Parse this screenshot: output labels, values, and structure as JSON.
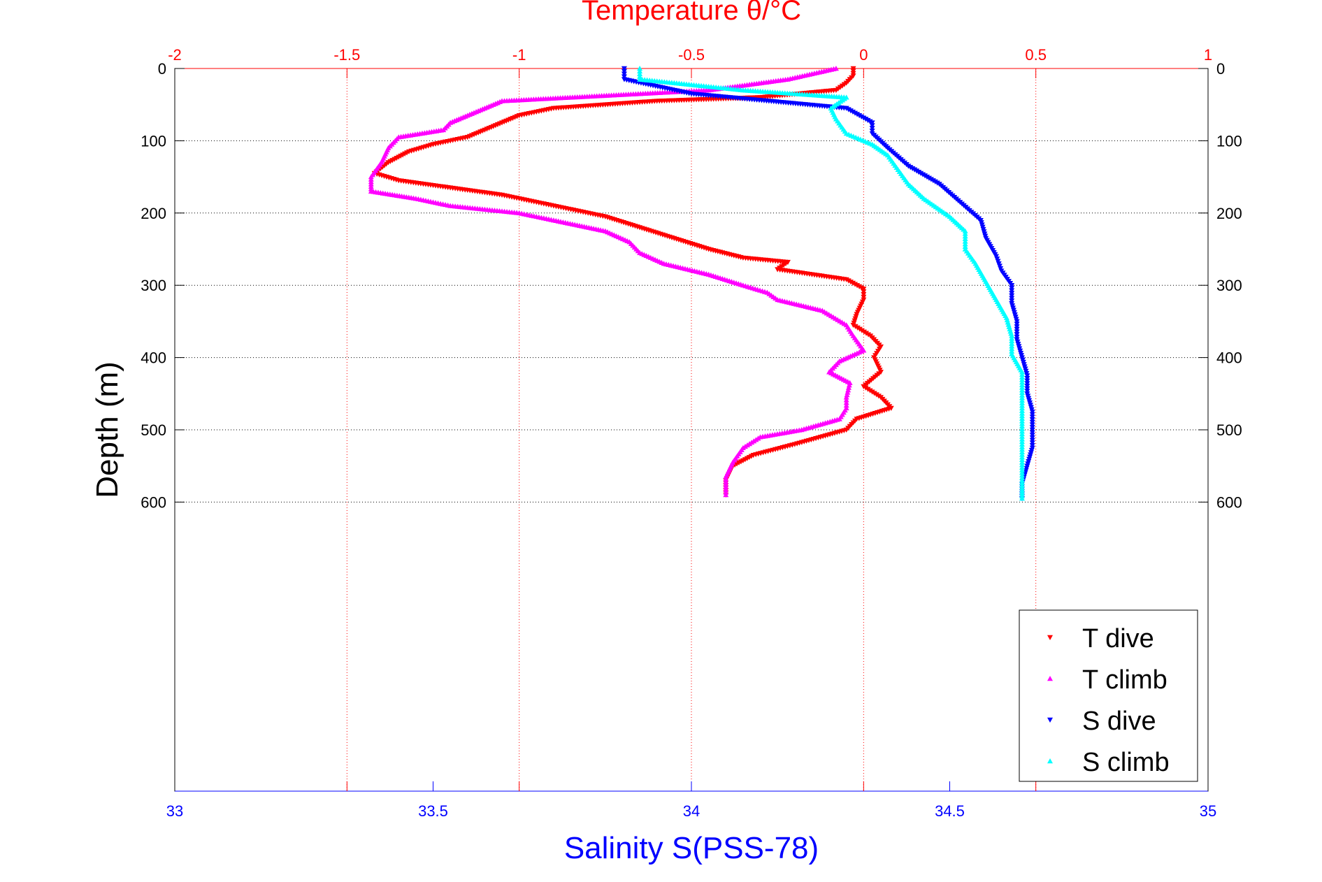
{
  "chart_data": {
    "type": "scatter",
    "title": "Temperature θ/°C",
    "xlabel": "Salinity S(PSS-78)",
    "ylabel": "Depth (m)",
    "x_top": {
      "label": "Temperature θ/°C",
      "lim": [
        -2,
        1
      ],
      "ticks": [
        "-2",
        "-1.5",
        "-1",
        "-0.5",
        "0",
        "0.5",
        "1"
      ],
      "tick_values": [
        -2,
        -1.5,
        -1,
        -0.5,
        0,
        0.5,
        1
      ]
    },
    "x_bottom": {
      "label": "Salinity S(PSS-78)",
      "lim": [
        33,
        35
      ],
      "ticks": [
        "33",
        "33.5",
        "34",
        "34.5",
        "35"
      ],
      "tick_values": [
        33,
        33.5,
        34,
        34.5,
        35
      ]
    },
    "y": {
      "label": "Depth (m)",
      "lim": [
        0,
        1000
      ],
      "reversed": true,
      "ticks": [
        "0",
        "100",
        "200",
        "300",
        "400",
        "500",
        "600"
      ],
      "tick_values": [
        0,
        100,
        200,
        300,
        400,
        500,
        600
      ]
    },
    "grid": true,
    "legend_position": "bottom-right",
    "series": [
      {
        "name": "T dive",
        "axis": "top",
        "color": "#ff0000",
        "marker": "triangle-down",
        "points": [
          [
            -0.03,
            0
          ],
          [
            -0.03,
            10
          ],
          [
            -0.05,
            20
          ],
          [
            -0.08,
            30
          ],
          [
            -0.3,
            40
          ],
          [
            -0.6,
            45
          ],
          [
            -0.9,
            55
          ],
          [
            -1.0,
            65
          ],
          [
            -1.05,
            75
          ],
          [
            -1.1,
            85
          ],
          [
            -1.15,
            95
          ],
          [
            -1.25,
            105
          ],
          [
            -1.32,
            115
          ],
          [
            -1.38,
            130
          ],
          [
            -1.42,
            145
          ],
          [
            -1.35,
            155
          ],
          [
            -1.2,
            165
          ],
          [
            -1.05,
            175
          ],
          [
            -0.95,
            185
          ],
          [
            -0.85,
            195
          ],
          [
            -0.75,
            205
          ],
          [
            -0.65,
            220
          ],
          [
            -0.55,
            235
          ],
          [
            -0.45,
            250
          ],
          [
            -0.35,
            262
          ],
          [
            -0.22,
            268
          ],
          [
            -0.25,
            278
          ],
          [
            -0.15,
            285
          ],
          [
            -0.05,
            292
          ],
          [
            0.0,
            305
          ],
          [
            0.0,
            320
          ],
          [
            -0.02,
            340
          ],
          [
            -0.03,
            355
          ],
          [
            0.02,
            370
          ],
          [
            0.05,
            385
          ],
          [
            0.03,
            400
          ],
          [
            0.05,
            420
          ],
          [
            0.0,
            440
          ],
          [
            0.05,
            455
          ],
          [
            0.08,
            470
          ],
          [
            -0.02,
            485
          ],
          [
            -0.05,
            500
          ],
          [
            -0.2,
            520
          ],
          [
            -0.32,
            535
          ],
          [
            -0.38,
            550
          ],
          [
            -0.4,
            570
          ],
          [
            -0.4,
            590
          ]
        ]
      },
      {
        "name": "T climb",
        "axis": "top",
        "color": "#ff00ff",
        "marker": "triangle-up",
        "points": [
          [
            -0.08,
            0
          ],
          [
            -0.22,
            15
          ],
          [
            -0.45,
            30
          ],
          [
            -1.05,
            45
          ],
          [
            -1.1,
            55
          ],
          [
            -1.15,
            65
          ],
          [
            -1.2,
            75
          ],
          [
            -1.22,
            85
          ],
          [
            -1.35,
            95
          ],
          [
            -1.38,
            110
          ],
          [
            -1.4,
            130
          ],
          [
            -1.43,
            150
          ],
          [
            -1.43,
            170
          ],
          [
            -1.3,
            180
          ],
          [
            -1.2,
            190
          ],
          [
            -1.0,
            200
          ],
          [
            -0.9,
            210
          ],
          [
            -0.75,
            225
          ],
          [
            -0.68,
            240
          ],
          [
            -0.65,
            255
          ],
          [
            -0.58,
            270
          ],
          [
            -0.45,
            285
          ],
          [
            -0.35,
            300
          ],
          [
            -0.28,
            310
          ],
          [
            -0.25,
            320
          ],
          [
            -0.12,
            335
          ],
          [
            -0.05,
            355
          ],
          [
            -0.03,
            370
          ],
          [
            0.0,
            390
          ],
          [
            -0.07,
            405
          ],
          [
            -0.1,
            420
          ],
          [
            -0.04,
            435
          ],
          [
            -0.05,
            455
          ],
          [
            -0.05,
            470
          ],
          [
            -0.07,
            485
          ],
          [
            -0.18,
            500
          ],
          [
            -0.3,
            510
          ],
          [
            -0.35,
            525
          ],
          [
            -0.38,
            545
          ],
          [
            -0.4,
            565
          ],
          [
            -0.4,
            590
          ]
        ]
      },
      {
        "name": "S dive",
        "axis": "bottom",
        "color": "#0000ff",
        "marker": "triangle-down",
        "points": [
          [
            33.87,
            0
          ],
          [
            33.87,
            15
          ],
          [
            34.0,
            35
          ],
          [
            34.15,
            45
          ],
          [
            34.3,
            55
          ],
          [
            34.35,
            75
          ],
          [
            34.35,
            90
          ],
          [
            34.38,
            110
          ],
          [
            34.42,
            135
          ],
          [
            34.48,
            160
          ],
          [
            34.52,
            185
          ],
          [
            34.56,
            210
          ],
          [
            34.57,
            235
          ],
          [
            34.59,
            260
          ],
          [
            34.6,
            280
          ],
          [
            34.62,
            300
          ],
          [
            34.62,
            325
          ],
          [
            34.63,
            350
          ],
          [
            34.63,
            375
          ],
          [
            34.64,
            400
          ],
          [
            34.65,
            425
          ],
          [
            34.65,
            450
          ],
          [
            34.66,
            475
          ],
          [
            34.66,
            500
          ],
          [
            34.66,
            525
          ],
          [
            34.65,
            550
          ],
          [
            34.64,
            575
          ],
          [
            34.64,
            595
          ]
        ]
      },
      {
        "name": "S climb",
        "axis": "bottom",
        "color": "#00ffff",
        "marker": "triangle-up",
        "points": [
          [
            33.9,
            0
          ],
          [
            33.9,
            15
          ],
          [
            34.1,
            30
          ],
          [
            34.3,
            40
          ],
          [
            34.27,
            55
          ],
          [
            34.28,
            70
          ],
          [
            34.3,
            90
          ],
          [
            34.35,
            105
          ],
          [
            34.38,
            120
          ],
          [
            34.4,
            140
          ],
          [
            34.42,
            160
          ],
          [
            34.45,
            180
          ],
          [
            34.5,
            205
          ],
          [
            34.53,
            225
          ],
          [
            34.53,
            250
          ],
          [
            34.55,
            270
          ],
          [
            34.57,
            295
          ],
          [
            34.59,
            320
          ],
          [
            34.61,
            345
          ],
          [
            34.62,
            370
          ],
          [
            34.62,
            395
          ],
          [
            34.64,
            420
          ],
          [
            34.64,
            445
          ],
          [
            34.64,
            470
          ],
          [
            34.64,
            495
          ],
          [
            34.64,
            520
          ],
          [
            34.64,
            545
          ],
          [
            34.64,
            570
          ],
          [
            34.64,
            595
          ]
        ]
      }
    ]
  }
}
